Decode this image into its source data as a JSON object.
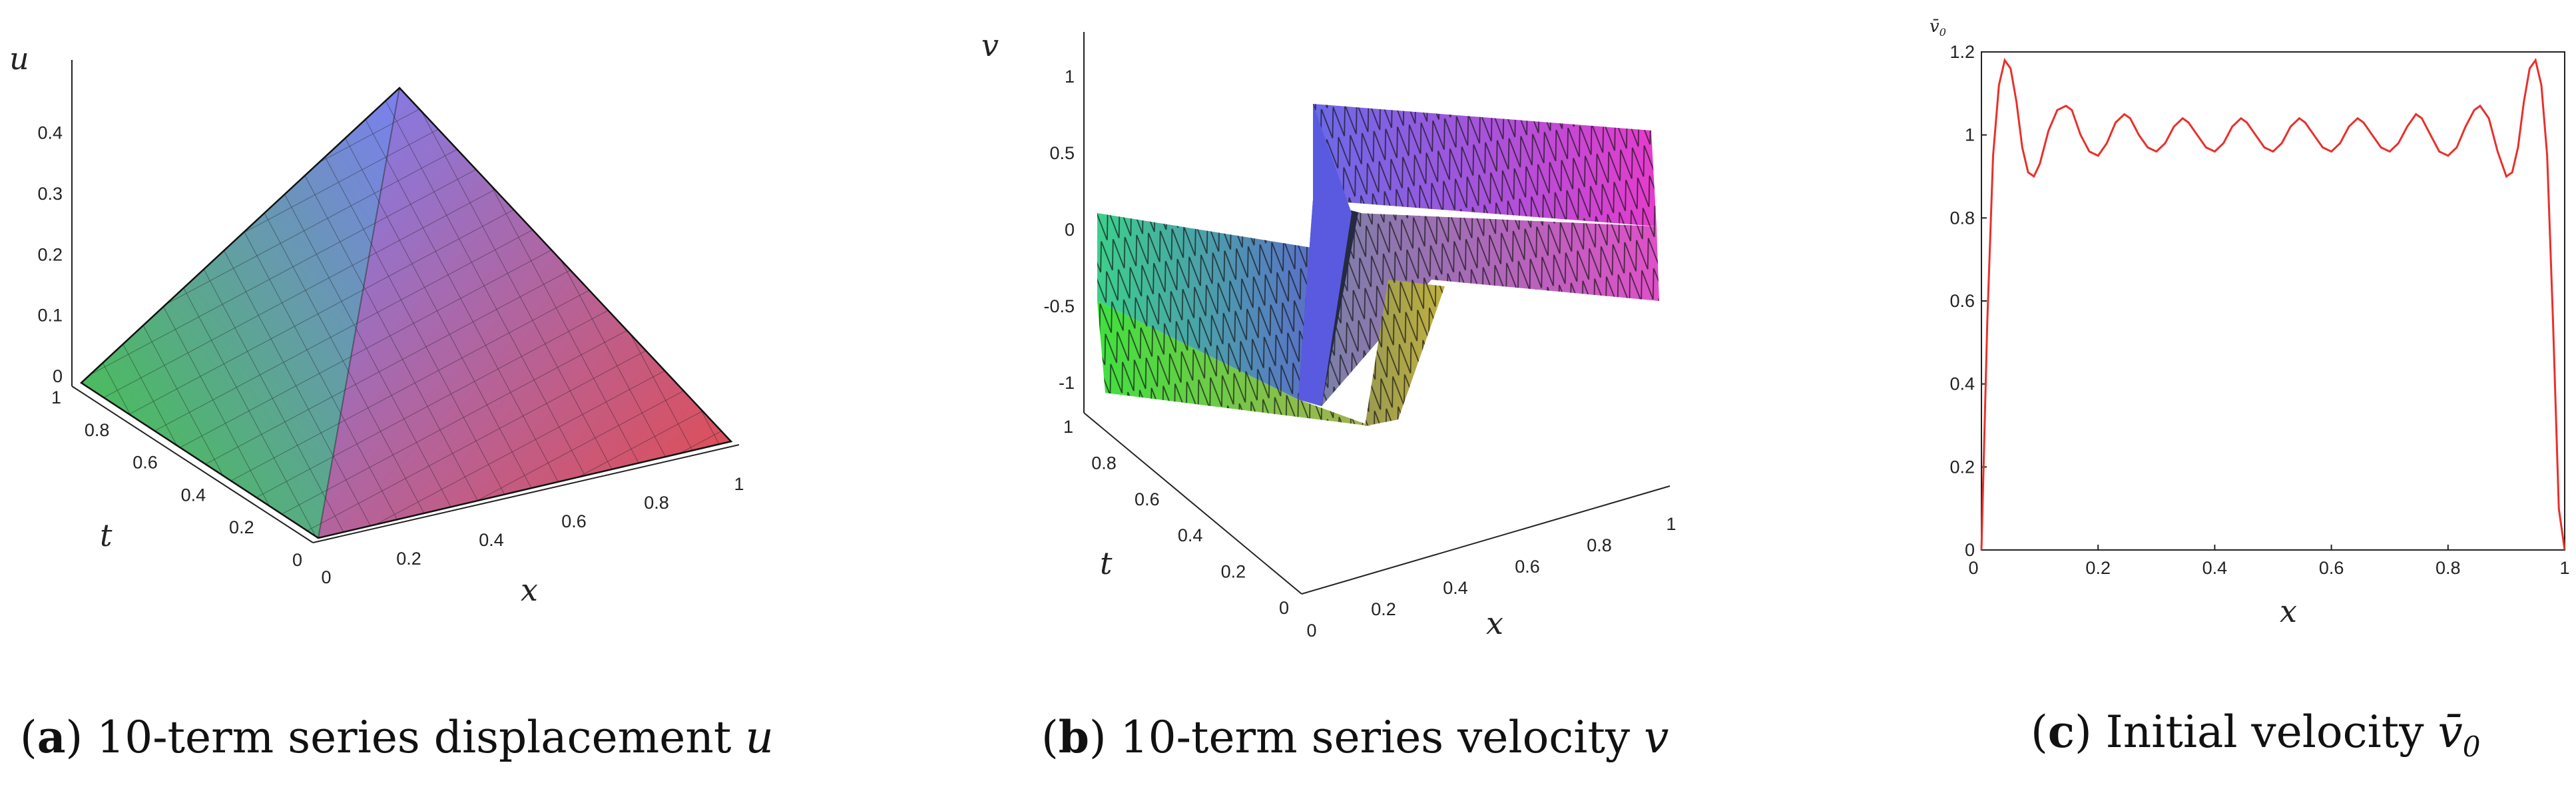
{
  "chart_data": [
    {
      "type": "surface",
      "caption_letter": "a",
      "caption_text": "10-term series displacement",
      "caption_symbol": "u",
      "xlabel": "x",
      "ylabel": "t",
      "zlabel": "u",
      "x_ticks": [
        "0",
        "0.2",
        "0.4",
        "0.6",
        "0.8",
        "1"
      ],
      "t_ticks": [
        "0",
        "0.2",
        "0.4",
        "0.6",
        "0.8",
        "1"
      ],
      "z_ticks": [
        "0",
        "0.1",
        "0.2",
        "0.3",
        "0.4"
      ],
      "xlim": [
        0,
        1
      ],
      "tlim": [
        0,
        1
      ],
      "zlim": [
        0,
        0.45
      ],
      "grid": false
    },
    {
      "type": "surface",
      "caption_letter": "b",
      "caption_text": "10-term series velocity",
      "caption_symbol": "v",
      "xlabel": "x",
      "ylabel": "t",
      "zlabel": "v",
      "x_ticks": [
        "0",
        "0.2",
        "0.4",
        "0.6",
        "0.8",
        "1"
      ],
      "t_ticks": [
        "0",
        "0.2",
        "0.4",
        "0.6",
        "0.8",
        "1"
      ],
      "z_ticks": [
        "-1",
        "-0.5",
        "0",
        "0.5",
        "1"
      ],
      "xlim": [
        0,
        1
      ],
      "tlim": [
        0,
        1
      ],
      "zlim": [
        -1.1,
        1.1
      ],
      "grid": false
    },
    {
      "type": "line",
      "caption_letter": "c",
      "caption_text": "Initial velocity",
      "caption_symbol": "v̄",
      "caption_subscript": "0",
      "xlabel": "x",
      "ylabel": "v̄",
      "ylabel_subscript": "0",
      "x_ticks": [
        "0",
        "0.2",
        "0.4",
        "0.6",
        "0.8",
        "1"
      ],
      "y_ticks": [
        "0",
        "0.2",
        "0.4",
        "0.6",
        "0.8",
        "1",
        "1.2"
      ],
      "xlim": [
        0,
        1
      ],
      "ylim": [
        0,
        1.2
      ],
      "line_color": "#e8302a",
      "grid": false,
      "series": [
        {
          "x": [
            0,
            0.01,
            0.02,
            0.03,
            0.04,
            0.05,
            0.06,
            0.07,
            0.08,
            0.09,
            0.1,
            0.115,
            0.13,
            0.145,
            0.155,
            0.17,
            0.185,
            0.2,
            0.215,
            0.23,
            0.245,
            0.255,
            0.27,
            0.285,
            0.3,
            0.315,
            0.33,
            0.345,
            0.355,
            0.37,
            0.385,
            0.4,
            0.415,
            0.43,
            0.445,
            0.455,
            0.47,
            0.485,
            0.5,
            0.515,
            0.53,
            0.545,
            0.555,
            0.57,
            0.585,
            0.6,
            0.615,
            0.63,
            0.645,
            0.655,
            0.67,
            0.685,
            0.7,
            0.715,
            0.73,
            0.745,
            0.755,
            0.77,
            0.785,
            0.8,
            0.815,
            0.83,
            0.845,
            0.855,
            0.87,
            0.885,
            0.9,
            0.91,
            0.92,
            0.93,
            0.94,
            0.95,
            0.96,
            0.97,
            0.98,
            0.99,
            1.0
          ],
          "y": [
            0,
            0.55,
            0.95,
            1.12,
            1.18,
            1.16,
            1.08,
            0.97,
            0.91,
            0.9,
            0.93,
            1.01,
            1.06,
            1.07,
            1.06,
            1.0,
            0.96,
            0.95,
            0.98,
            1.03,
            1.05,
            1.04,
            1.0,
            0.97,
            0.96,
            0.98,
            1.02,
            1.04,
            1.03,
            1.0,
            0.97,
            0.96,
            0.98,
            1.02,
            1.04,
            1.03,
            1.0,
            0.97,
            0.96,
            0.98,
            1.02,
            1.04,
            1.03,
            1.0,
            0.97,
            0.96,
            0.98,
            1.02,
            1.04,
            1.03,
            1.0,
            0.97,
            0.96,
            0.98,
            1.02,
            1.05,
            1.04,
            1.0,
            0.96,
            0.95,
            0.97,
            1.02,
            1.06,
            1.07,
            1.04,
            0.96,
            0.9,
            0.91,
            0.97,
            1.08,
            1.16,
            1.18,
            1.12,
            0.95,
            0.55,
            0.1,
            0
          ]
        }
      ]
    }
  ],
  "colors": {
    "red_corner": "#e64a4a",
    "blue_apex": "#7676ee",
    "green_corner": "#42cc42",
    "dark_corner": "#3a4a44",
    "magenta": "#e040c8",
    "yellow": "#b8b040"
  }
}
